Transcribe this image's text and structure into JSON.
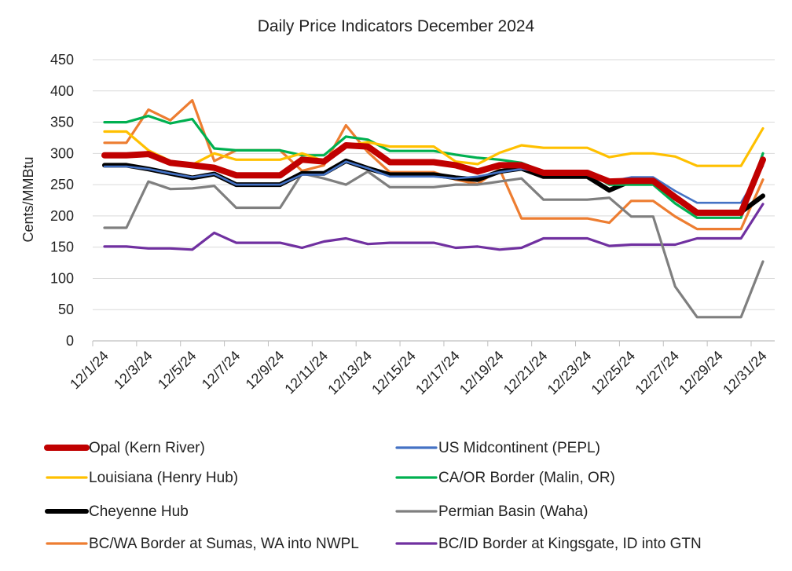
{
  "chart_data": {
    "type": "line",
    "title": "Daily Price Indicators December 2024",
    "xlabel": "",
    "ylabel": "Cents/MMBtu",
    "ylim": [
      0,
      450
    ],
    "yticks": [
      0,
      50,
      100,
      150,
      200,
      250,
      300,
      350,
      400,
      450
    ],
    "x": [
      "12/1/24",
      "12/2/24",
      "12/3/24",
      "12/4/24",
      "12/5/24",
      "12/6/24",
      "12/7/24",
      "12/8/24",
      "12/9/24",
      "12/10/24",
      "12/11/24",
      "12/12/24",
      "12/13/24",
      "12/14/24",
      "12/15/24",
      "12/16/24",
      "12/17/24",
      "12/18/24",
      "12/19/24",
      "12/20/24",
      "12/21/24",
      "12/22/24",
      "12/23/24",
      "12/24/24",
      "12/25/24",
      "12/26/24",
      "12/27/24",
      "12/28/24",
      "12/29/24",
      "12/30/24",
      "12/31/24"
    ],
    "x_tick_labels": [
      "12/1/24",
      "12/3/24",
      "12/5/24",
      "12/7/24",
      "12/9/24",
      "12/11/24",
      "12/13/24",
      "12/15/24",
      "12/17/24",
      "12/19/24",
      "12/21/24",
      "12/23/24",
      "12/25/24",
      "12/27/24",
      "12/29/24",
      "12/31/24"
    ],
    "grid": "horizontal",
    "legend_position": "bottom",
    "series": [
      {
        "name": "Opal (Kern River)",
        "color": "#C00000",
        "width": 8,
        "values": [
          297,
          297,
          299,
          285,
          281,
          277,
          265,
          265,
          265,
          290,
          287,
          313,
          311,
          286,
          286,
          286,
          281,
          271,
          281,
          281,
          269,
          269,
          269,
          255,
          256,
          256,
          230,
          205,
          205,
          205,
          290
        ]
      },
      {
        "name": "US Midcontinent (PEPL)",
        "color": "#4472C4",
        "width": 2.6,
        "values": [
          279,
          279,
          275,
          268,
          262,
          267,
          250,
          250,
          250,
          266,
          266,
          287,
          276,
          263,
          263,
          263,
          260,
          263,
          270,
          275,
          270,
          270,
          270,
          255,
          262,
          262,
          240,
          221,
          221,
          221,
          280
        ]
      },
      {
        "name": "Louisiana (Henry Hub)",
        "color": "#FFC000",
        "width": 3.2,
        "values": [
          335,
          335,
          305,
          288,
          282,
          300,
          290,
          290,
          290,
          300,
          288,
          312,
          318,
          311,
          311,
          311,
          287,
          283,
          301,
          313,
          309,
          309,
          309,
          294,
          300,
          300,
          295,
          280,
          280,
          280,
          340
        ]
      },
      {
        "name": "CA/OR Border (Malin, OR)",
        "color": "#00B050",
        "width": 3.2,
        "values": [
          350,
          350,
          360,
          348,
          355,
          308,
          305,
          305,
          305,
          297,
          297,
          327,
          322,
          304,
          304,
          304,
          298,
          293,
          290,
          285,
          271,
          271,
          271,
          250,
          250,
          250,
          220,
          197,
          197,
          197,
          300
        ]
      },
      {
        "name": "Cheyenne Hub",
        "color": "#000000",
        "width": 6,
        "values": [
          281,
          281,
          275,
          268,
          261,
          267,
          250,
          250,
          250,
          268,
          268,
          288,
          276,
          266,
          266,
          266,
          261,
          258,
          271,
          276,
          263,
          263,
          263,
          241,
          256,
          256,
          228,
          206,
          206,
          206,
          232
        ]
      },
      {
        "name": "Permian Basin (Waha)",
        "color": "#7F7F7F",
        "width": 3.2,
        "values": [
          181,
          181,
          255,
          243,
          244,
          248,
          213,
          213,
          213,
          268,
          260,
          250,
          271,
          246,
          246,
          246,
          250,
          250,
          255,
          260,
          226,
          226,
          226,
          229,
          199,
          199,
          87,
          38,
          38,
          38,
          127
        ]
      },
      {
        "name": "BC/WA Border at Sumas, WA into NWPL",
        "color": "#ED7D31",
        "width": 3.2,
        "values": [
          317,
          317,
          370,
          353,
          385,
          288,
          305,
          305,
          305,
          272,
          281,
          345,
          302,
          270,
          270,
          270,
          258,
          251,
          275,
          196,
          196,
          196,
          196,
          189,
          224,
          224,
          199,
          179,
          179,
          179,
          258
        ]
      },
      {
        "name": "BC/ID Border at Kingsgate, ID into GTN",
        "color": "#7030A0",
        "width": 3.2,
        "values": [
          151,
          151,
          148,
          148,
          146,
          173,
          157,
          157,
          157,
          149,
          159,
          164,
          155,
          157,
          157,
          157,
          149,
          151,
          146,
          149,
          164,
          164,
          164,
          152,
          154,
          154,
          154,
          164,
          164,
          164,
          219
        ]
      }
    ]
  }
}
